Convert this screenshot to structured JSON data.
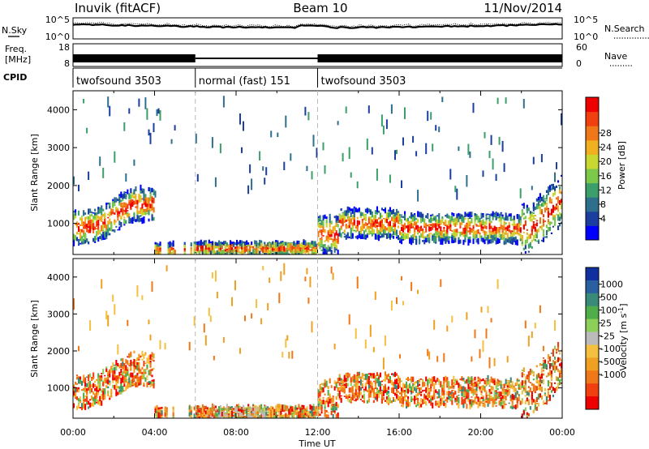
{
  "header": {
    "station": "Inuvik (fitACF)",
    "beam": "Beam 10",
    "date": "11/Nov/2014"
  },
  "strip": {
    "nsky_label": "N.Sky",
    "nsky_ticks": [
      "10^5",
      "10^0"
    ],
    "nsearch_label": "N.Search",
    "nsearch_ticks": [
      "10^5",
      "10^0"
    ],
    "freq_label": "Freq.",
    "freq_unit": "[MHz]",
    "freq_ticks": [
      "18",
      "8"
    ],
    "nave_label": "Nave",
    "nave_ticks": [
      "60",
      "0"
    ],
    "cpid_label": "CPID",
    "cpid_segments": [
      {
        "label": "twofsound 3503",
        "start": 0,
        "end": 6
      },
      {
        "label": "normal (fast) 151",
        "start": 6,
        "end": 12
      },
      {
        "label": "twofsound 3503",
        "start": 12,
        "end": 24
      }
    ]
  },
  "chart_data": [
    {
      "type": "heatmap",
      "name": "power",
      "ylabel": "Slant Range [km]",
      "xlabel": "",
      "xlim": [
        0,
        24
      ],
      "ylim": [
        180,
        4500
      ],
      "yticks": [
        "1000",
        "2000",
        "3000",
        "4000"
      ],
      "colorbar": {
        "label": "Power [dB]",
        "ticks": [
          "4",
          "8",
          "12",
          "16",
          "20",
          "24",
          "28"
        ],
        "colors": [
          "#0000ff",
          "#1a3fa0",
          "#2e6f8e",
          "#3c9f6a",
          "#7cc84a",
          "#c8d830",
          "#f0b020",
          "#f07818",
          "#f04010",
          "#ee0000"
        ]
      }
    },
    {
      "type": "heatmap",
      "name": "velocity",
      "ylabel": "Slant Range [km]",
      "xlabel": "Time UT",
      "xlim": [
        0,
        24
      ],
      "ylim": [
        180,
        4500
      ],
      "yticks": [
        "1000",
        "2000",
        "3000",
        "4000"
      ],
      "xticks": [
        "00:00",
        "04:00",
        "08:00",
        "12:00",
        "16:00",
        "20:00",
        "00:00"
      ],
      "colorbar": {
        "label": "Velocity [m s",
        "label_sup": "-1",
        "label_end": "]",
        "ticks": [
          "1000",
          "500",
          "100",
          "25",
          "-25",
          "-100",
          "-500",
          "-1000"
        ],
        "colors": [
          "#1030a0",
          "#2a5fa0",
          "#3a8a7a",
          "#4fae4a",
          "#8cd05a",
          "#bbbbbb",
          "#f5c040",
          "#f0a020",
          "#f07818",
          "#f04010",
          "#ee0000"
        ]
      }
    }
  ]
}
